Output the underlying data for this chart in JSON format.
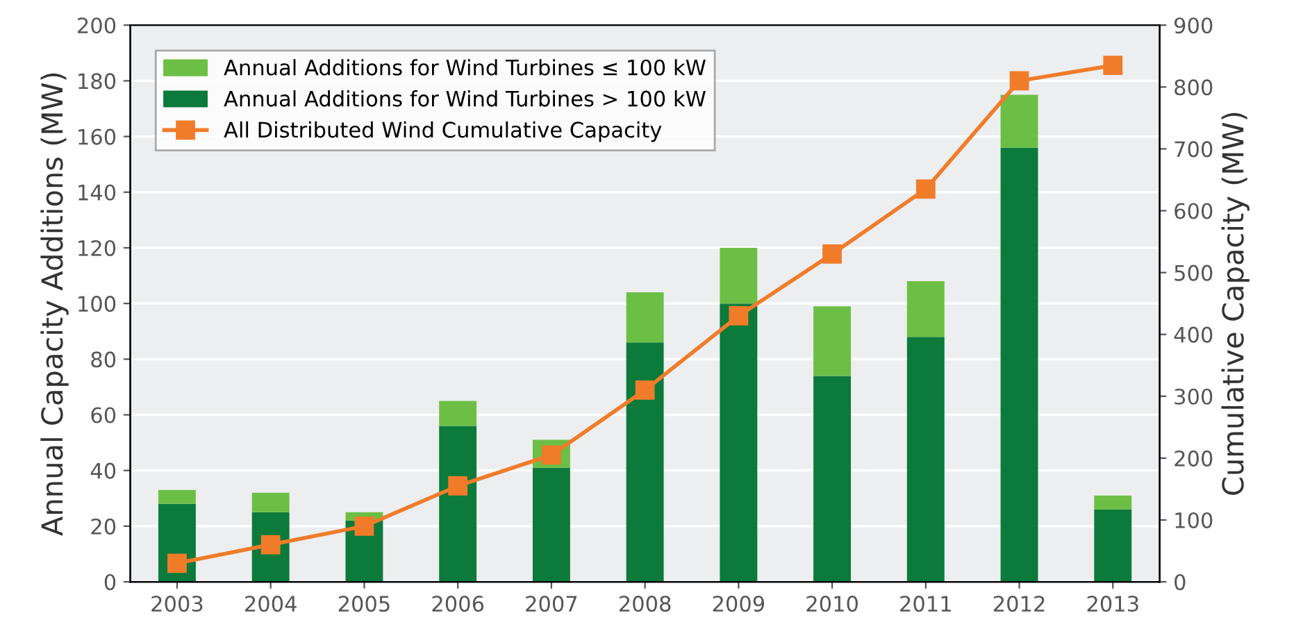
{
  "chart_data": {
    "type": "bar",
    "stacked": true,
    "categories": [
      "2003",
      "2004",
      "2005",
      "2006",
      "2007",
      "2008",
      "2009",
      "2010",
      "2011",
      "2012",
      "2013"
    ],
    "series": [
      {
        "name": "Annual Additions for Wind Turbines > 100 kW",
        "color": "#0b7a3b",
        "values": [
          28,
          25,
          22,
          56,
          41,
          86,
          100,
          74,
          88,
          156,
          26
        ]
      },
      {
        "name": "Annual Additions for Wind Turbines ≤ 100 kW",
        "color": "#6cbf45",
        "values": [
          5,
          7,
          3,
          9,
          10,
          18,
          20,
          25,
          20,
          19,
          5
        ]
      },
      {
        "name": "All Distributed Wind Cumulative Capacity",
        "type": "line",
        "axis": "y2",
        "marker": "square",
        "color": "#f07c2a",
        "values": [
          30,
          60,
          90,
          155,
          205,
          310,
          430,
          530,
          635,
          810,
          835
        ]
      }
    ],
    "ylabel": "Annual Capacity Additions (MW)",
    "y2label": "Cumulative Capacity (MW)",
    "ylim": [
      0,
      200
    ],
    "yticks": [
      0,
      20,
      40,
      60,
      80,
      100,
      120,
      140,
      160,
      180,
      200
    ],
    "y2lim": [
      0,
      900
    ],
    "y2ticks": [
      0,
      100,
      200,
      300,
      400,
      500,
      600,
      700,
      800,
      900
    ],
    "grid": "y",
    "legend": "top left"
  }
}
